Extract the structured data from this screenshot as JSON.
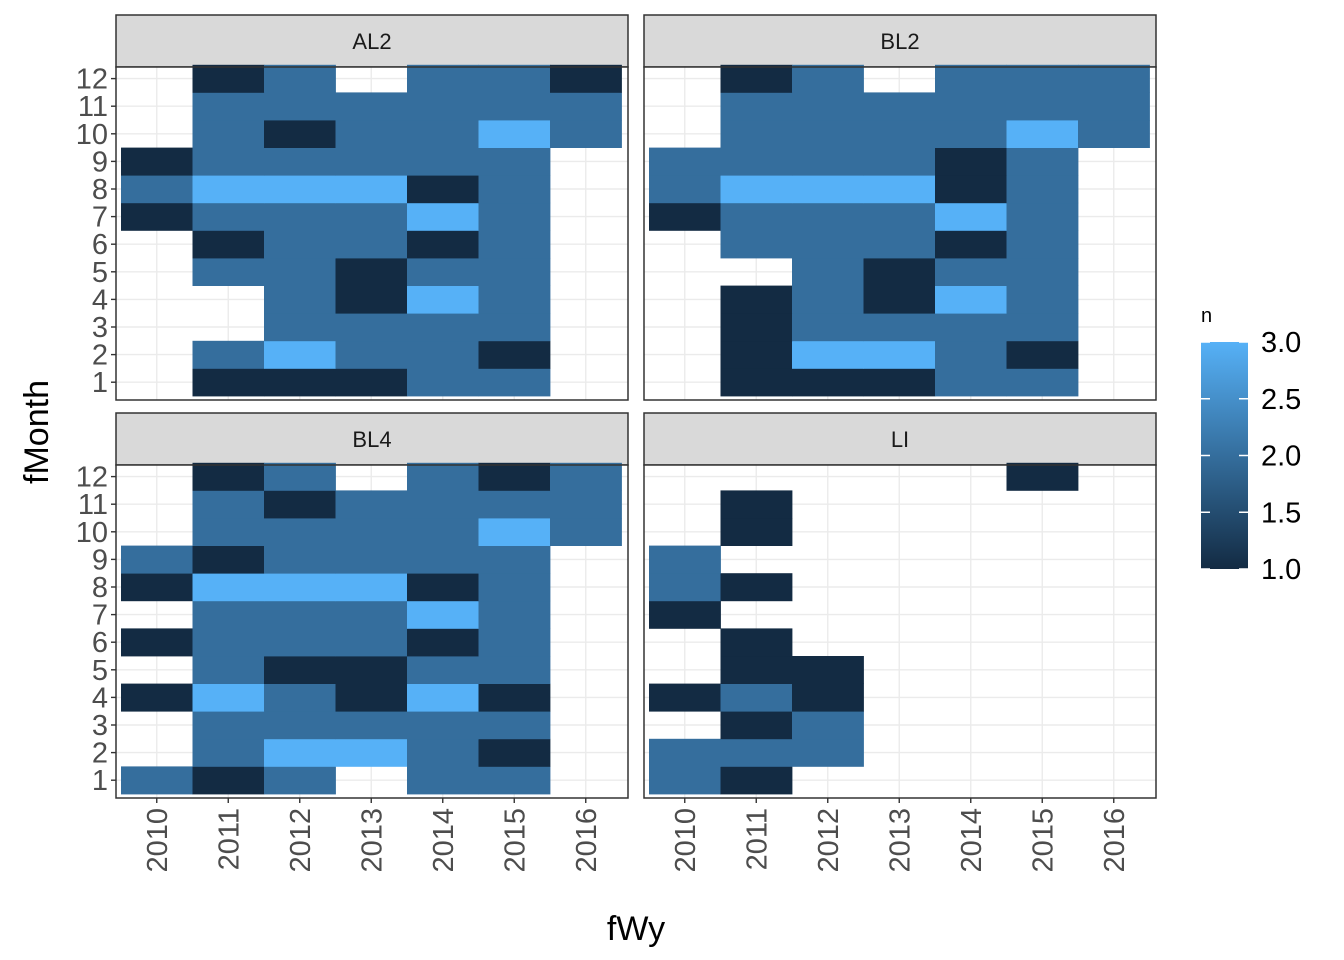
{
  "chart_data": {
    "type": "heatmap",
    "xlabel": "fWy",
    "ylabel": "fMonth",
    "x_categories": [
      "2010",
      "2011",
      "2012",
      "2013",
      "2014",
      "2015",
      "2016"
    ],
    "y_categories": [
      "1",
      "2",
      "3",
      "4",
      "5",
      "6",
      "7",
      "8",
      "9",
      "10",
      "11",
      "12"
    ],
    "grid": true,
    "legend": {
      "title": "n",
      "position": "right",
      "ticks": [
        "1.0",
        "1.5",
        "2.0",
        "2.5",
        "3.0"
      ],
      "range": [
        1,
        3
      ],
      "color_low": "#132B43",
      "color_high": "#56B1F7"
    },
    "panels": [
      {
        "name": "AL2",
        "cells": [
          [
            "2011",
            "1",
            1
          ],
          [
            "2012",
            "1",
            1
          ],
          [
            "2013",
            "1",
            1
          ],
          [
            "2014",
            "1",
            2
          ],
          [
            "2015",
            "1",
            2
          ],
          [
            "2011",
            "2",
            2
          ],
          [
            "2012",
            "2",
            3
          ],
          [
            "2013",
            "2",
            2
          ],
          [
            "2014",
            "2",
            2
          ],
          [
            "2015",
            "2",
            1
          ],
          [
            "2012",
            "3",
            2
          ],
          [
            "2013",
            "3",
            2
          ],
          [
            "2014",
            "3",
            2
          ],
          [
            "2015",
            "3",
            2
          ],
          [
            "2012",
            "4",
            2
          ],
          [
            "2013",
            "4",
            1
          ],
          [
            "2014",
            "4",
            3
          ],
          [
            "2015",
            "4",
            2
          ],
          [
            "2011",
            "5",
            2
          ],
          [
            "2012",
            "5",
            2
          ],
          [
            "2013",
            "5",
            1
          ],
          [
            "2014",
            "5",
            2
          ],
          [
            "2015",
            "5",
            2
          ],
          [
            "2011",
            "6",
            1
          ],
          [
            "2012",
            "6",
            2
          ],
          [
            "2013",
            "6",
            2
          ],
          [
            "2014",
            "6",
            1
          ],
          [
            "2015",
            "6",
            2
          ],
          [
            "2010",
            "7",
            1
          ],
          [
            "2011",
            "7",
            2
          ],
          [
            "2012",
            "7",
            2
          ],
          [
            "2013",
            "7",
            2
          ],
          [
            "2014",
            "7",
            3
          ],
          [
            "2015",
            "7",
            2
          ],
          [
            "2010",
            "8",
            2
          ],
          [
            "2011",
            "8",
            3
          ],
          [
            "2012",
            "8",
            3
          ],
          [
            "2013",
            "8",
            3
          ],
          [
            "2014",
            "8",
            1
          ],
          [
            "2015",
            "8",
            2
          ],
          [
            "2010",
            "9",
            1
          ],
          [
            "2011",
            "9",
            2
          ],
          [
            "2012",
            "9",
            2
          ],
          [
            "2013",
            "9",
            2
          ],
          [
            "2014",
            "9",
            2
          ],
          [
            "2015",
            "9",
            2
          ],
          [
            "2011",
            "10",
            2
          ],
          [
            "2012",
            "10",
            1
          ],
          [
            "2013",
            "10",
            2
          ],
          [
            "2014",
            "10",
            2
          ],
          [
            "2015",
            "10",
            3
          ],
          [
            "2016",
            "10",
            2
          ],
          [
            "2011",
            "11",
            2
          ],
          [
            "2012",
            "11",
            2
          ],
          [
            "2013",
            "11",
            2
          ],
          [
            "2014",
            "11",
            2
          ],
          [
            "2015",
            "11",
            2
          ],
          [
            "2016",
            "11",
            2
          ],
          [
            "2011",
            "12",
            1
          ],
          [
            "2012",
            "12",
            2
          ],
          [
            "2014",
            "12",
            2
          ],
          [
            "2015",
            "12",
            2
          ],
          [
            "2016",
            "12",
            1
          ]
        ]
      },
      {
        "name": "BL2",
        "cells": [
          [
            "2011",
            "1",
            1
          ],
          [
            "2012",
            "1",
            1
          ],
          [
            "2013",
            "1",
            1
          ],
          [
            "2014",
            "1",
            2
          ],
          [
            "2015",
            "1",
            2
          ],
          [
            "2011",
            "2",
            1
          ],
          [
            "2012",
            "2",
            3
          ],
          [
            "2013",
            "2",
            3
          ],
          [
            "2014",
            "2",
            2
          ],
          [
            "2015",
            "2",
            1
          ],
          [
            "2011",
            "3",
            1
          ],
          [
            "2012",
            "3",
            2
          ],
          [
            "2013",
            "3",
            2
          ],
          [
            "2014",
            "3",
            2
          ],
          [
            "2015",
            "3",
            2
          ],
          [
            "2011",
            "4",
            1
          ],
          [
            "2012",
            "4",
            2
          ],
          [
            "2013",
            "4",
            1
          ],
          [
            "2014",
            "4",
            3
          ],
          [
            "2015",
            "4",
            2
          ],
          [
            "2012",
            "5",
            2
          ],
          [
            "2013",
            "5",
            1
          ],
          [
            "2014",
            "5",
            2
          ],
          [
            "2015",
            "5",
            2
          ],
          [
            "2011",
            "6",
            2
          ],
          [
            "2012",
            "6",
            2
          ],
          [
            "2013",
            "6",
            2
          ],
          [
            "2014",
            "6",
            1
          ],
          [
            "2015",
            "6",
            2
          ],
          [
            "2010",
            "7",
            1
          ],
          [
            "2011",
            "7",
            2
          ],
          [
            "2012",
            "7",
            2
          ],
          [
            "2013",
            "7",
            2
          ],
          [
            "2014",
            "7",
            3
          ],
          [
            "2015",
            "7",
            2
          ],
          [
            "2010",
            "8",
            2
          ],
          [
            "2011",
            "8",
            3
          ],
          [
            "2012",
            "8",
            3
          ],
          [
            "2013",
            "8",
            3
          ],
          [
            "2014",
            "8",
            1
          ],
          [
            "2015",
            "8",
            2
          ],
          [
            "2010",
            "9",
            2
          ],
          [
            "2011",
            "9",
            2
          ],
          [
            "2012",
            "9",
            2
          ],
          [
            "2013",
            "9",
            2
          ],
          [
            "2014",
            "9",
            1
          ],
          [
            "2015",
            "9",
            2
          ],
          [
            "2011",
            "10",
            2
          ],
          [
            "2012",
            "10",
            2
          ],
          [
            "2013",
            "10",
            2
          ],
          [
            "2014",
            "10",
            2
          ],
          [
            "2015",
            "10",
            3
          ],
          [
            "2016",
            "10",
            2
          ],
          [
            "2011",
            "11",
            2
          ],
          [
            "2012",
            "11",
            2
          ],
          [
            "2013",
            "11",
            2
          ],
          [
            "2014",
            "11",
            2
          ],
          [
            "2015",
            "11",
            2
          ],
          [
            "2016",
            "11",
            2
          ],
          [
            "2011",
            "12",
            1
          ],
          [
            "2012",
            "12",
            2
          ],
          [
            "2014",
            "12",
            2
          ],
          [
            "2015",
            "12",
            2
          ],
          [
            "2016",
            "12",
            2
          ]
        ]
      },
      {
        "name": "BL4",
        "cells": [
          [
            "2010",
            "1",
            2
          ],
          [
            "2011",
            "1",
            1
          ],
          [
            "2012",
            "1",
            2
          ],
          [
            "2014",
            "1",
            2
          ],
          [
            "2015",
            "1",
            2
          ],
          [
            "2011",
            "2",
            2
          ],
          [
            "2012",
            "2",
            3
          ],
          [
            "2013",
            "2",
            3
          ],
          [
            "2014",
            "2",
            2
          ],
          [
            "2015",
            "2",
            1
          ],
          [
            "2011",
            "3",
            2
          ],
          [
            "2012",
            "3",
            2
          ],
          [
            "2013",
            "3",
            2
          ],
          [
            "2014",
            "3",
            2
          ],
          [
            "2015",
            "3",
            2
          ],
          [
            "2010",
            "4",
            1
          ],
          [
            "2011",
            "4",
            3
          ],
          [
            "2012",
            "4",
            2
          ],
          [
            "2013",
            "4",
            1
          ],
          [
            "2014",
            "4",
            3
          ],
          [
            "2015",
            "4",
            1
          ],
          [
            "2011",
            "5",
            2
          ],
          [
            "2012",
            "5",
            1
          ],
          [
            "2013",
            "5",
            1
          ],
          [
            "2014",
            "5",
            2
          ],
          [
            "2015",
            "5",
            2
          ],
          [
            "2010",
            "6",
            1
          ],
          [
            "2011",
            "6",
            2
          ],
          [
            "2012",
            "6",
            2
          ],
          [
            "2013",
            "6",
            2
          ],
          [
            "2014",
            "6",
            1
          ],
          [
            "2015",
            "6",
            2
          ],
          [
            "2011",
            "7",
            2
          ],
          [
            "2012",
            "7",
            2
          ],
          [
            "2013",
            "7",
            2
          ],
          [
            "2014",
            "7",
            3
          ],
          [
            "2015",
            "7",
            2
          ],
          [
            "2010",
            "8",
            1
          ],
          [
            "2011",
            "8",
            3
          ],
          [
            "2012",
            "8",
            3
          ],
          [
            "2013",
            "8",
            3
          ],
          [
            "2014",
            "8",
            1
          ],
          [
            "2015",
            "8",
            2
          ],
          [
            "2010",
            "9",
            2
          ],
          [
            "2011",
            "9",
            1
          ],
          [
            "2012",
            "9",
            2
          ],
          [
            "2013",
            "9",
            2
          ],
          [
            "2014",
            "9",
            2
          ],
          [
            "2015",
            "9",
            2
          ],
          [
            "2011",
            "10",
            2
          ],
          [
            "2012",
            "10",
            2
          ],
          [
            "2013",
            "10",
            2
          ],
          [
            "2014",
            "10",
            2
          ],
          [
            "2015",
            "10",
            3
          ],
          [
            "2016",
            "10",
            2
          ],
          [
            "2011",
            "11",
            2
          ],
          [
            "2012",
            "11",
            1
          ],
          [
            "2013",
            "11",
            2
          ],
          [
            "2014",
            "11",
            2
          ],
          [
            "2015",
            "11",
            2
          ],
          [
            "2016",
            "11",
            2
          ],
          [
            "2011",
            "12",
            1
          ],
          [
            "2012",
            "12",
            2
          ],
          [
            "2014",
            "12",
            2
          ],
          [
            "2015",
            "12",
            1
          ],
          [
            "2016",
            "12",
            2
          ]
        ]
      },
      {
        "name": "LI",
        "cells": [
          [
            "2010",
            "1",
            2
          ],
          [
            "2011",
            "1",
            1
          ],
          [
            "2010",
            "2",
            2
          ],
          [
            "2011",
            "2",
            2
          ],
          [
            "2012",
            "2",
            2
          ],
          [
            "2011",
            "3",
            1
          ],
          [
            "2012",
            "3",
            2
          ],
          [
            "2010",
            "4",
            1
          ],
          [
            "2011",
            "4",
            2
          ],
          [
            "2012",
            "4",
            1
          ],
          [
            "2011",
            "5",
            1
          ],
          [
            "2012",
            "5",
            1
          ],
          [
            "2011",
            "6",
            1
          ],
          [
            "2010",
            "7",
            1
          ],
          [
            "2010",
            "8",
            2
          ],
          [
            "2011",
            "8",
            1
          ],
          [
            "2010",
            "9",
            2
          ],
          [
            "2011",
            "10",
            1
          ],
          [
            "2011",
            "11",
            1
          ],
          [
            "2015",
            "12",
            1
          ]
        ]
      }
    ]
  }
}
